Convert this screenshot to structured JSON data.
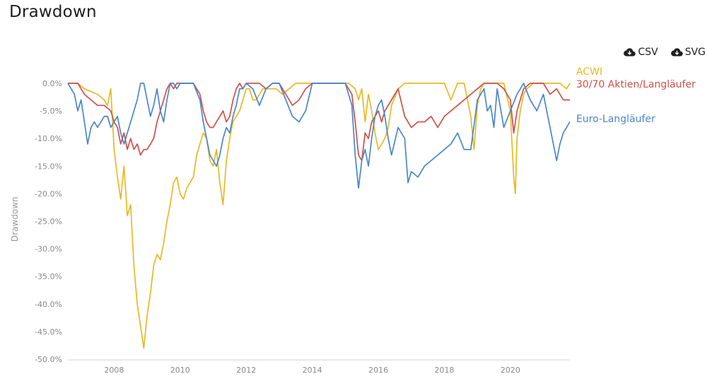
{
  "title": "Drawdown",
  "downloads": [
    {
      "label": "CSV",
      "icon": "cloud-download-icon"
    },
    {
      "label": "SVG",
      "icon": "cloud-download-icon"
    }
  ],
  "chart_data": {
    "type": "line",
    "title": "",
    "xlabel": "",
    "ylabel": "Drawdown",
    "xlim": [
      2006.6,
      2021.8
    ],
    "ylim": [
      -50,
      0
    ],
    "x_ticks": [
      2008,
      2010,
      2012,
      2014,
      2016,
      2018,
      2020
    ],
    "x_tick_labels": [
      "2008",
      "2010",
      "2012",
      "2014",
      "2016",
      "2018",
      "2020"
    ],
    "y_ticks": [
      0,
      -5,
      -10,
      -15,
      -20,
      -25,
      -30,
      -35,
      -40,
      -45,
      -50
    ],
    "y_tick_labels": [
      "0.0%",
      "-5.0%",
      "-10.0%",
      "-15.0%",
      "-20.0%",
      "-25.0%",
      "-30.0%",
      "-35.0%",
      "-40.0%",
      "-45.0%",
      "-50.0%"
    ],
    "grid": false,
    "legend_position": "right, at line ends",
    "series": [
      {
        "name": "ACWI",
        "color": "#e8b923",
        "x": [
          2006.6,
          2006.9,
          2007.1,
          2007.3,
          2007.5,
          2007.7,
          2007.8,
          2007.9,
          2008.0,
          2008.1,
          2008.2,
          2008.3,
          2008.4,
          2008.5,
          2008.6,
          2008.7,
          2008.8,
          2008.9,
          2009.0,
          2009.1,
          2009.2,
          2009.3,
          2009.4,
          2009.5,
          2009.6,
          2009.7,
          2009.8,
          2009.9,
          2010.0,
          2010.1,
          2010.2,
          2010.3,
          2010.4,
          2010.5,
          2010.6,
          2010.7,
          2010.8,
          2010.9,
          2011.0,
          2011.1,
          2011.2,
          2011.3,
          2011.4,
          2011.5,
          2011.6,
          2011.7,
          2011.8,
          2011.9,
          2012.0,
          2012.1,
          2012.2,
          2012.3,
          2012.5,
          2012.7,
          2012.9,
          2013.1,
          2013.3,
          2013.5,
          2013.7,
          2013.9,
          2014.1,
          2014.3,
          2014.5,
          2014.7,
          2014.9,
          2015.1,
          2015.3,
          2015.4,
          2015.5,
          2015.6,
          2015.7,
          2015.8,
          2015.9,
          2016.0,
          2016.1,
          2016.2,
          2016.3,
          2016.4,
          2016.6,
          2016.8,
          2017.0,
          2017.2,
          2017.4,
          2017.6,
          2017.8,
          2018.0,
          2018.2,
          2018.4,
          2018.6,
          2018.8,
          2018.9,
          2019.0,
          2019.1,
          2019.2,
          2019.4,
          2019.6,
          2019.8,
          2020.0,
          2020.1,
          2020.15,
          2020.2,
          2020.3,
          2020.4,
          2020.5,
          2020.7,
          2020.9,
          2021.1,
          2021.3,
          2021.5,
          2021.7,
          2021.8
        ],
        "y": [
          0,
          0,
          -1,
          -1.5,
          -2,
          -3,
          -4,
          -1,
          -12,
          -17,
          -21,
          -15,
          -24,
          -22,
          -33,
          -40,
          -44,
          -48,
          -42,
          -38,
          -33,
          -31,
          -32,
          -29,
          -25,
          -22,
          -18,
          -17,
          -20,
          -21,
          -19,
          -18,
          -17,
          -13,
          -11,
          -9,
          -10,
          -14,
          -15,
          -12,
          -18,
          -22,
          -14,
          -10,
          -7,
          -6,
          -5,
          -3,
          -1,
          -1,
          -3,
          -3,
          -1,
          -1,
          -1,
          -2,
          -1,
          0,
          0,
          0,
          0,
          0,
          0,
          0,
          0,
          0,
          -1,
          -3,
          -1,
          -7,
          -2,
          -5,
          -9,
          -12,
          -11,
          -10,
          -8,
          -4,
          -1,
          0,
          0,
          0,
          0,
          0,
          0,
          0,
          -3,
          0,
          0,
          -6,
          -12,
          -4,
          -1,
          0,
          0,
          0,
          0,
          -5,
          -17,
          -20,
          -10,
          -5,
          -2,
          -1,
          0,
          0,
          0,
          0,
          0,
          -1,
          0
        ]
      },
      {
        "name": "30/70 Aktien/Langläufer",
        "color": "#cf5047",
        "x": [
          2006.6,
          2006.9,
          2007.1,
          2007.3,
          2007.5,
          2007.7,
          2007.9,
          2008.0,
          2008.1,
          2008.2,
          2008.3,
          2008.4,
          2008.5,
          2008.6,
          2008.7,
          2008.8,
          2008.9,
          2009.0,
          2009.1,
          2009.2,
          2009.3,
          2009.4,
          2009.5,
          2009.6,
          2009.7,
          2009.8,
          2009.9,
          2010.0,
          2010.2,
          2010.4,
          2010.6,
          2010.7,
          2010.8,
          2010.9,
          2011.0,
          2011.1,
          2011.2,
          2011.3,
          2011.4,
          2011.5,
          2011.6,
          2011.7,
          2011.8,
          2011.9,
          2012.0,
          2012.2,
          2012.4,
          2012.6,
          2012.8,
          2013.0,
          2013.2,
          2013.4,
          2013.6,
          2013.8,
          2014.0,
          2014.2,
          2014.4,
          2014.6,
          2014.8,
          2015.0,
          2015.2,
          2015.3,
          2015.4,
          2015.5,
          2015.6,
          2015.7,
          2015.8,
          2015.9,
          2016.0,
          2016.1,
          2016.2,
          2016.4,
          2016.6,
          2016.8,
          2017.0,
          2017.2,
          2017.4,
          2017.6,
          2017.8,
          2018.0,
          2018.2,
          2018.4,
          2018.6,
          2018.8,
          2019.0,
          2019.2,
          2019.4,
          2019.6,
          2019.8,
          2020.0,
          2020.1,
          2020.2,
          2020.3,
          2020.4,
          2020.6,
          2020.8,
          2021.0,
          2021.2,
          2021.4,
          2021.6,
          2021.8
        ],
        "y": [
          0,
          0,
          -2,
          -3,
          -4,
          -4,
          -5,
          -7,
          -8,
          -11,
          -9,
          -12,
          -10,
          -12,
          -11,
          -13,
          -12,
          -12,
          -11,
          -10,
          -7,
          -5,
          -3,
          -1,
          0,
          -1,
          0,
          0,
          0,
          0,
          -2,
          -5,
          -7,
          -8,
          -8,
          -7,
          -6,
          -5,
          -7,
          -6,
          -3,
          -1,
          0,
          -1,
          0,
          0,
          0,
          -1,
          0,
          0,
          -2,
          -4,
          -3,
          -1,
          0,
          0,
          0,
          0,
          0,
          0,
          -2,
          -7,
          -13,
          -14,
          -9,
          -10,
          -7,
          -6,
          -5,
          -7,
          -5,
          -3,
          -1,
          -6,
          -8,
          -7,
          -7,
          -6,
          -8,
          -6,
          -5,
          -4,
          -3,
          -2,
          -1,
          0,
          0,
          0,
          -1,
          -3,
          -9,
          -5,
          -3,
          -1,
          0,
          0,
          0,
          -2,
          -1,
          -3,
          -3
        ]
      },
      {
        "name": "Euro-Langläufer",
        "color": "#4a86cc",
        "x": [
          2006.6,
          2006.8,
          2006.9,
          2007.0,
          2007.1,
          2007.2,
          2007.3,
          2007.4,
          2007.5,
          2007.6,
          2007.7,
          2007.8,
          2007.9,
          2008.0,
          2008.1,
          2008.2,
          2008.3,
          2008.4,
          2008.5,
          2008.6,
          2008.7,
          2008.8,
          2008.9,
          2009.0,
          2009.1,
          2009.2,
          2009.3,
          2009.4,
          2009.5,
          2009.6,
          2009.7,
          2009.8,
          2009.9,
          2010.0,
          2010.2,
          2010.4,
          2010.6,
          2010.7,
          2010.8,
          2010.9,
          2011.0,
          2011.1,
          2011.2,
          2011.3,
          2011.4,
          2011.5,
          2011.6,
          2011.7,
          2011.8,
          2011.9,
          2012.0,
          2012.2,
          2012.4,
          2012.6,
          2012.8,
          2013.0,
          2013.2,
          2013.4,
          2013.6,
          2013.8,
          2014.0,
          2014.2,
          2014.4,
          2014.6,
          2014.8,
          2015.0,
          2015.2,
          2015.3,
          2015.4,
          2015.5,
          2015.6,
          2015.7,
          2015.8,
          2015.9,
          2016.0,
          2016.1,
          2016.2,
          2016.3,
          2016.4,
          2016.6,
          2016.8,
          2016.9,
          2017.0,
          2017.2,
          2017.4,
          2017.6,
          2017.8,
          2018.0,
          2018.2,
          2018.4,
          2018.6,
          2018.8,
          2019.0,
          2019.2,
          2019.3,
          2019.4,
          2019.5,
          2019.6,
          2019.8,
          2020.0,
          2020.2,
          2020.4,
          2020.6,
          2020.8,
          2021.0,
          2021.2,
          2021.4,
          2021.5,
          2021.6,
          2021.8
        ],
        "y": [
          0,
          -2,
          -5,
          -3,
          -7,
          -11,
          -8,
          -7,
          -8,
          -7,
          -6,
          -6,
          -8,
          -7,
          -6,
          -9,
          -11,
          -9,
          -7,
          -5,
          -3,
          0,
          0,
          -3,
          -6,
          -4,
          -1,
          -5,
          -7,
          -3,
          0,
          0,
          -1,
          0,
          0,
          0,
          -3,
          -7,
          -10,
          -13,
          -14,
          -15,
          -13,
          -10,
          -8,
          -9,
          -6,
          -4,
          -1,
          -1,
          0,
          -1,
          -4,
          -1,
          0,
          0,
          -3,
          -6,
          -7,
          -5,
          0,
          0,
          0,
          0,
          0,
          0,
          -4,
          -13,
          -19,
          -14,
          -12,
          -15,
          -10,
          -6,
          -4,
          -3,
          -6,
          -10,
          -13,
          -8,
          -10,
          -18,
          -16,
          -17,
          -15,
          -14,
          -13,
          -12,
          -11,
          -9,
          -12,
          -12,
          -3,
          -1,
          -5,
          -4,
          -8,
          -1,
          -8,
          -5,
          -2,
          0,
          -3,
          -5,
          -2,
          -8,
          -14,
          -11,
          -9,
          -7
        ]
      }
    ]
  }
}
